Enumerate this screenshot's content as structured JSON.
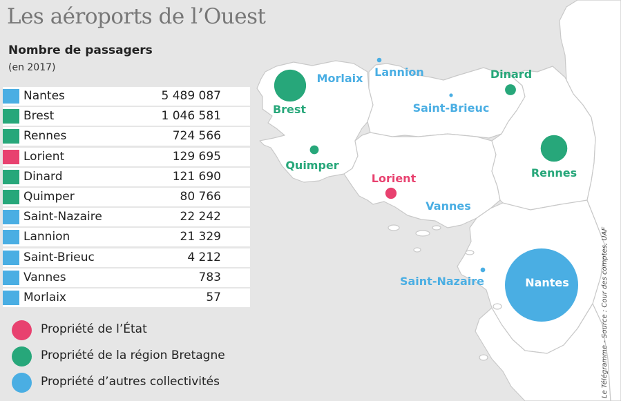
{
  "title": "Les aéroports de l’Ouest",
  "subtitle": "Nombre de passagers",
  "subtitle_note": "(en 2017)",
  "colors": {
    "etat": "#e8416f",
    "region": "#27a77a",
    "autres": "#4aaee3"
  },
  "airports": [
    {
      "name": "Nantes",
      "passengers": "5 489 087",
      "value": 5489087,
      "owner": "autres"
    },
    {
      "name": "Brest",
      "passengers": "1 046 581",
      "value": 1046581,
      "owner": "region"
    },
    {
      "name": "Rennes",
      "passengers": "724 566",
      "value": 724566,
      "owner": "region"
    },
    {
      "name": "Lorient",
      "passengers": "129 695",
      "value": 129695,
      "owner": "etat"
    },
    {
      "name": "Dinard",
      "passengers": "121 690",
      "value": 121690,
      "owner": "region"
    },
    {
      "name": "Quimper",
      "passengers": "80 766",
      "value": 80766,
      "owner": "region"
    },
    {
      "name": "Saint-Nazaire",
      "passengers": "22 242",
      "value": 22242,
      "owner": "autres"
    },
    {
      "name": "Lannion",
      "passengers": "21 329",
      "value": 21329,
      "owner": "autres"
    },
    {
      "name": "Saint-Brieuc",
      "passengers": "4 212",
      "value": 4212,
      "owner": "autres"
    },
    {
      "name": "Vannes",
      "passengers": "783",
      "value": 783,
      "owner": "autres"
    },
    {
      "name": "Morlaix",
      "passengers": "57",
      "value": 57,
      "owner": "autres"
    }
  ],
  "legend": [
    {
      "label": "Propriété de l’État",
      "owner": "etat"
    },
    {
      "label": "Propriété de la région Bretagne",
      "owner": "region"
    },
    {
      "label": "Propriété d’autres collectivités",
      "owner": "autres"
    }
  ],
  "credit": "Le Télégramme - Source : Cour des comptes, UAF"
}
